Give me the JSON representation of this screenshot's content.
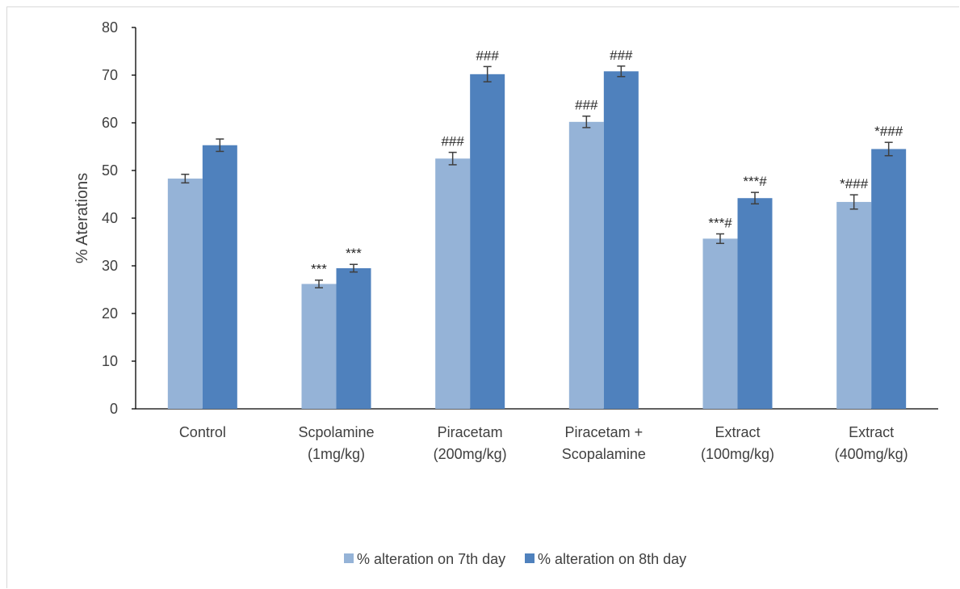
{
  "chart_data": {
    "type": "bar",
    "title": "",
    "xlabel": "",
    "ylabel": "% Aterations",
    "ylim": [
      0,
      80
    ],
    "yticks": [
      0,
      10,
      20,
      30,
      40,
      50,
      60,
      70,
      80
    ],
    "grid": false,
    "legend_position": "bottom",
    "categories": [
      [
        "Control"
      ],
      [
        "Scpolamine",
        "(1mg/kg)"
      ],
      [
        "Piracetam",
        "(200mg/kg)"
      ],
      [
        "Piracetam +",
        "Scopalamine"
      ],
      [
        "Extract",
        "(100mg/kg)"
      ],
      [
        "Extract",
        "(400mg/kg)"
      ]
    ],
    "series": [
      {
        "name": "% alteration on 7th day",
        "color": "#95b3d7",
        "values": [
          48.3,
          26.2,
          52.5,
          60.2,
          35.7,
          43.4
        ],
        "errors": [
          0.9,
          0.8,
          1.3,
          1.2,
          1.0,
          1.5
        ],
        "annotations": [
          "",
          "***",
          "###",
          "###",
          "***#",
          "*###"
        ]
      },
      {
        "name": "% alteration on 8th day",
        "color": "#4f81bd",
        "values": [
          55.3,
          29.5,
          70.2,
          70.8,
          44.2,
          54.5
        ],
        "errors": [
          1.3,
          0.8,
          1.6,
          1.1,
          1.2,
          1.4
        ],
        "annotations": [
          "",
          "***",
          "###",
          "###",
          "***#",
          "*###"
        ]
      }
    ]
  }
}
